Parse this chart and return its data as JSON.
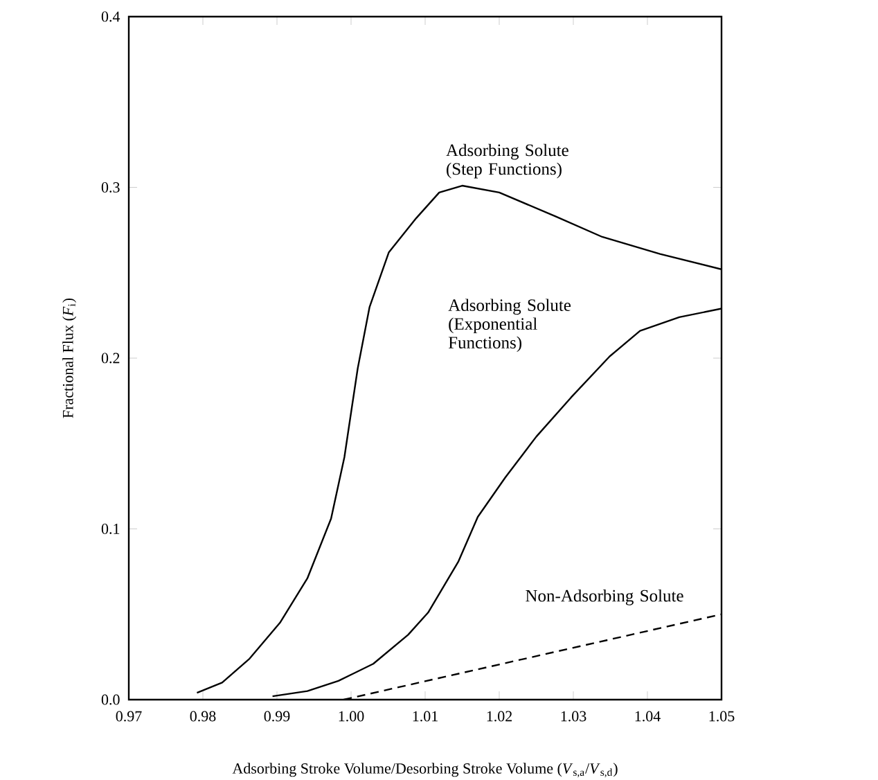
{
  "chart_data": {
    "type": "line",
    "xlabel": "Adsorbing Stroke Volume/Desorbing Stroke Volume (*V*$_{s,a}$/*V*$_{s,d}$)",
    "ylabel": "Fractional Flux (*F*$_{i}$)",
    "xlim": [
      0.97,
      1.05
    ],
    "ylim": [
      0,
      0.4
    ],
    "xticks": [
      0.97,
      0.98,
      0.99,
      {
        "value": 1.0,
        "label": "1.00"
      },
      1.01,
      1.02,
      1.03,
      1.04,
      1.05
    ],
    "yticks": [
      {
        "value": 0,
        "label": "0.0"
      },
      0.1,
      0.2,
      0.3,
      0.4
    ],
    "grid": false,
    "legend": false,
    "marker": "none",
    "series": [
      {
        "name": "Adsorbing Solute (Step Functions)",
        "color": "#000000",
        "line_style": "solid",
        "x": [
          0.9792,
          0.9826,
          0.9863,
          0.9904,
          0.9941,
          0.9973,
          0.9991,
          1.0001,
          1.0009,
          1.0025,
          1.0051,
          1.0088,
          1.0119,
          1.015,
          1.02,
          1.0276,
          1.0339,
          1.0417,
          1.05
        ],
        "values": [
          0.004,
          0.01,
          0.024,
          0.045,
          0.071,
          0.106,
          0.142,
          0.171,
          0.194,
          0.23,
          0.262,
          0.282,
          0.297,
          0.301,
          0.297,
          0.283,
          0.271,
          0.261,
          0.252
        ]
      },
      {
        "name": "Adsorbing Solute (Exponential Functions)",
        "color": "#000000",
        "line_style": "solid",
        "x": [
          0.9894,
          0.9941,
          0.9983,
          1.003,
          1.0077,
          1.0104,
          1.0145,
          1.0171,
          1.0208,
          1.025,
          1.0297,
          1.0349,
          1.039,
          1.0443,
          1.05
        ],
        "values": [
          0.002,
          0.005,
          0.011,
          0.021,
          0.038,
          0.051,
          0.081,
          0.107,
          0.13,
          0.154,
          0.177,
          0.201,
          0.216,
          0.224,
          0.229
        ]
      },
      {
        "name": "Non-Adsorbing Solute",
        "color": "#000000",
        "line_style": "dashed",
        "x": [
          0.999,
          1.05
        ],
        "values": [
          0.0,
          0.05
        ]
      }
    ]
  }
}
